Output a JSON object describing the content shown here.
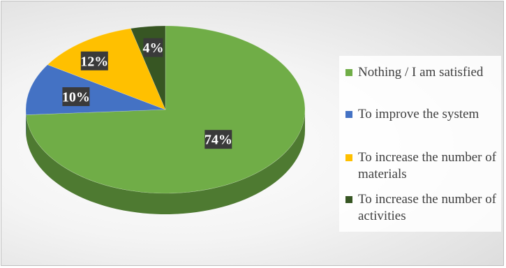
{
  "chart_data": {
    "type": "pie",
    "title": "",
    "categories": [
      "Nothing / I am satisfied",
      "To improve the system",
      "To increase the number of materials",
      "To increase the number of activities"
    ],
    "values": [
      74,
      10,
      12,
      4
    ],
    "data_labels": [
      "74%",
      "10%",
      "12%",
      "4%"
    ],
    "colors": [
      "#70ad47",
      "#4472c4",
      "#ffc000",
      "#375623"
    ],
    "side_colors": [
      "#4e7a31",
      "#2f5597",
      "#bf9000",
      "#24381a"
    ],
    "legend": {
      "position": "right",
      "items": [
        {
          "label": "Nothing / I am satisfied",
          "color": "#70ad47"
        },
        {
          "label": "To improve the system",
          "color": "#4472c4"
        },
        {
          "label": "To increase the number of materials",
          "color": "#ffc000"
        },
        {
          "label": "To increase the number of activities",
          "color": "#375623"
        }
      ]
    },
    "style": "3d-pie"
  }
}
